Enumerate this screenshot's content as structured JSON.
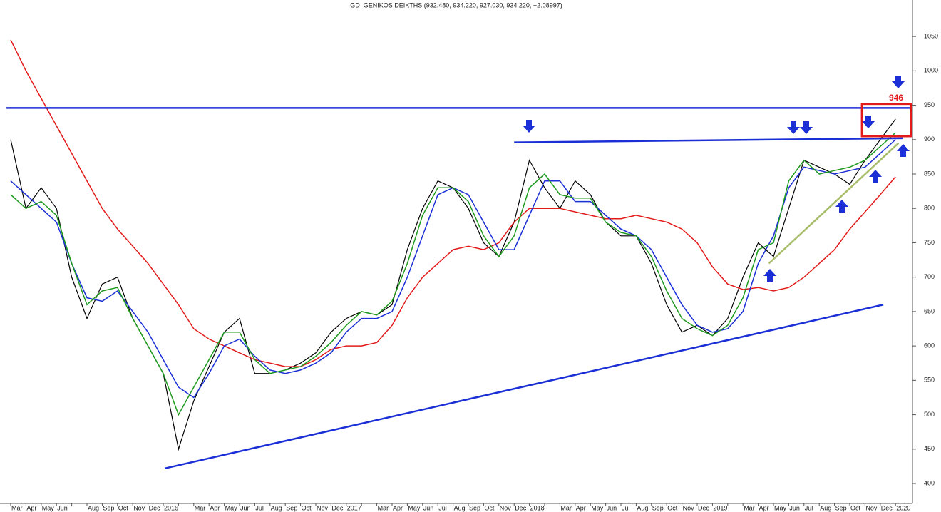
{
  "chart_data": {
    "type": "line",
    "title": "GD_GENIKOS DEIKTHS (932.480, 934.220, 927.030, 934.220, +2.08997)",
    "categories": [
      "Mar",
      "Apr",
      "May",
      "Jun",
      null,
      "Aug",
      "Sep",
      "Oct",
      "Nov",
      "Dec",
      "2016",
      null,
      "Mar",
      "Apr",
      "May",
      "Jun",
      "Jul",
      "Aug",
      "Sep",
      "Oct",
      "Nov",
      "Dec",
      "2017",
      null,
      "Mar",
      "Apr",
      "May",
      "Jun",
      "Jul",
      "Aug",
      "Sep",
      "Oct",
      "Nov",
      "Dec",
      "2018",
      null,
      "Mar",
      "Apr",
      "May",
      "Jun",
      "Jul",
      "Aug",
      "Sep",
      "Oct",
      "Nov",
      "Dec",
      "2019",
      null,
      "Mar",
      "Apr",
      "May",
      "Jun",
      "Jul",
      "Aug",
      "Sep",
      "Oct",
      "Nov",
      "Dec",
      "2020"
    ],
    "series": [
      {
        "color": "#000000",
        "values": [
          900,
          800,
          830,
          800,
          700,
          640,
          690,
          700,
          640,
          600,
          560,
          450,
          520,
          570,
          620,
          640,
          560,
          560,
          565,
          575,
          590,
          620,
          640,
          650,
          645,
          660,
          740,
          800,
          840,
          830,
          800,
          750,
          730,
          780,
          870,
          830,
          800,
          840,
          820,
          780,
          760,
          760,
          720,
          660,
          620,
          630,
          615,
          640,
          700,
          750,
          730,
          800,
          870,
          860,
          850,
          835,
          870,
          900,
          930
        ]
      },
      {
        "color": "#e31a1a",
        "values": [
          1045,
          1000,
          960,
          920,
          880,
          840,
          800,
          770,
          745,
          720,
          690,
          660,
          625,
          610,
          600,
          590,
          580,
          575,
          570,
          570,
          580,
          595,
          600,
          600,
          605,
          630,
          670,
          700,
          720,
          740,
          745,
          740,
          750,
          780,
          800,
          800,
          800,
          795,
          790,
          785,
          785,
          790,
          785,
          780,
          770,
          750,
          715,
          690,
          682,
          685,
          680,
          685,
          700,
          720,
          740,
          770,
          795,
          820,
          846
        ]
      },
      {
        "color": "#1a2fd6",
        "values": [
          840,
          820,
          800,
          780,
          720,
          670,
          665,
          680,
          650,
          620,
          580,
          540,
          525,
          560,
          600,
          610,
          585,
          565,
          560,
          565,
          575,
          590,
          620,
          640,
          640,
          650,
          700,
          760,
          820,
          830,
          820,
          780,
          740,
          740,
          790,
          840,
          840,
          810,
          810,
          790,
          770,
          760,
          740,
          700,
          660,
          630,
          620,
          625,
          650,
          720,
          760,
          830,
          860,
          855,
          850,
          855,
          860,
          880,
          900
        ]
      },
      {
        "color": "#1e9a1e",
        "values": [
          820,
          800,
          810,
          790,
          720,
          660,
          680,
          685,
          640,
          600,
          560,
          500,
          540,
          580,
          620,
          620,
          580,
          560,
          565,
          570,
          585,
          605,
          630,
          650,
          645,
          665,
          720,
          790,
          830,
          830,
          810,
          760,
          730,
          760,
          830,
          850,
          820,
          815,
          815,
          780,
          765,
          760,
          730,
          680,
          640,
          625,
          615,
          630,
          670,
          740,
          750,
          840,
          870,
          850,
          855,
          860,
          870,
          890,
          910
        ]
      }
    ],
    "lines": [
      {
        "color": "#1a2fd6",
        "x": [
          -0.3,
          59
        ],
        "y": [
          946,
          946
        ]
      },
      {
        "color": "#1a2fd6",
        "x": [
          33,
          58.5
        ],
        "y": [
          896,
          902
        ]
      },
      {
        "color": "#1a2fd6",
        "x": [
          10.1,
          57.2
        ],
        "y": [
          422,
          660
        ]
      },
      {
        "color": "#a8bd6a",
        "x": [
          49.7,
          58.2
        ],
        "y": [
          720,
          895
        ]
      }
    ],
    "box": {
      "color": "#e31a1a",
      "x": [
        55.8,
        59
      ],
      "y": [
        905,
        952
      ]
    },
    "annotations": [
      {
        "text": "946",
        "color": "#e31a1a"
      }
    ],
    "ylim": [
      371,
      1103
    ],
    "yticks": [
      400,
      450,
      500,
      550,
      600,
      650,
      700,
      750,
      800,
      850,
      900,
      950,
      1000,
      1050
    ]
  }
}
